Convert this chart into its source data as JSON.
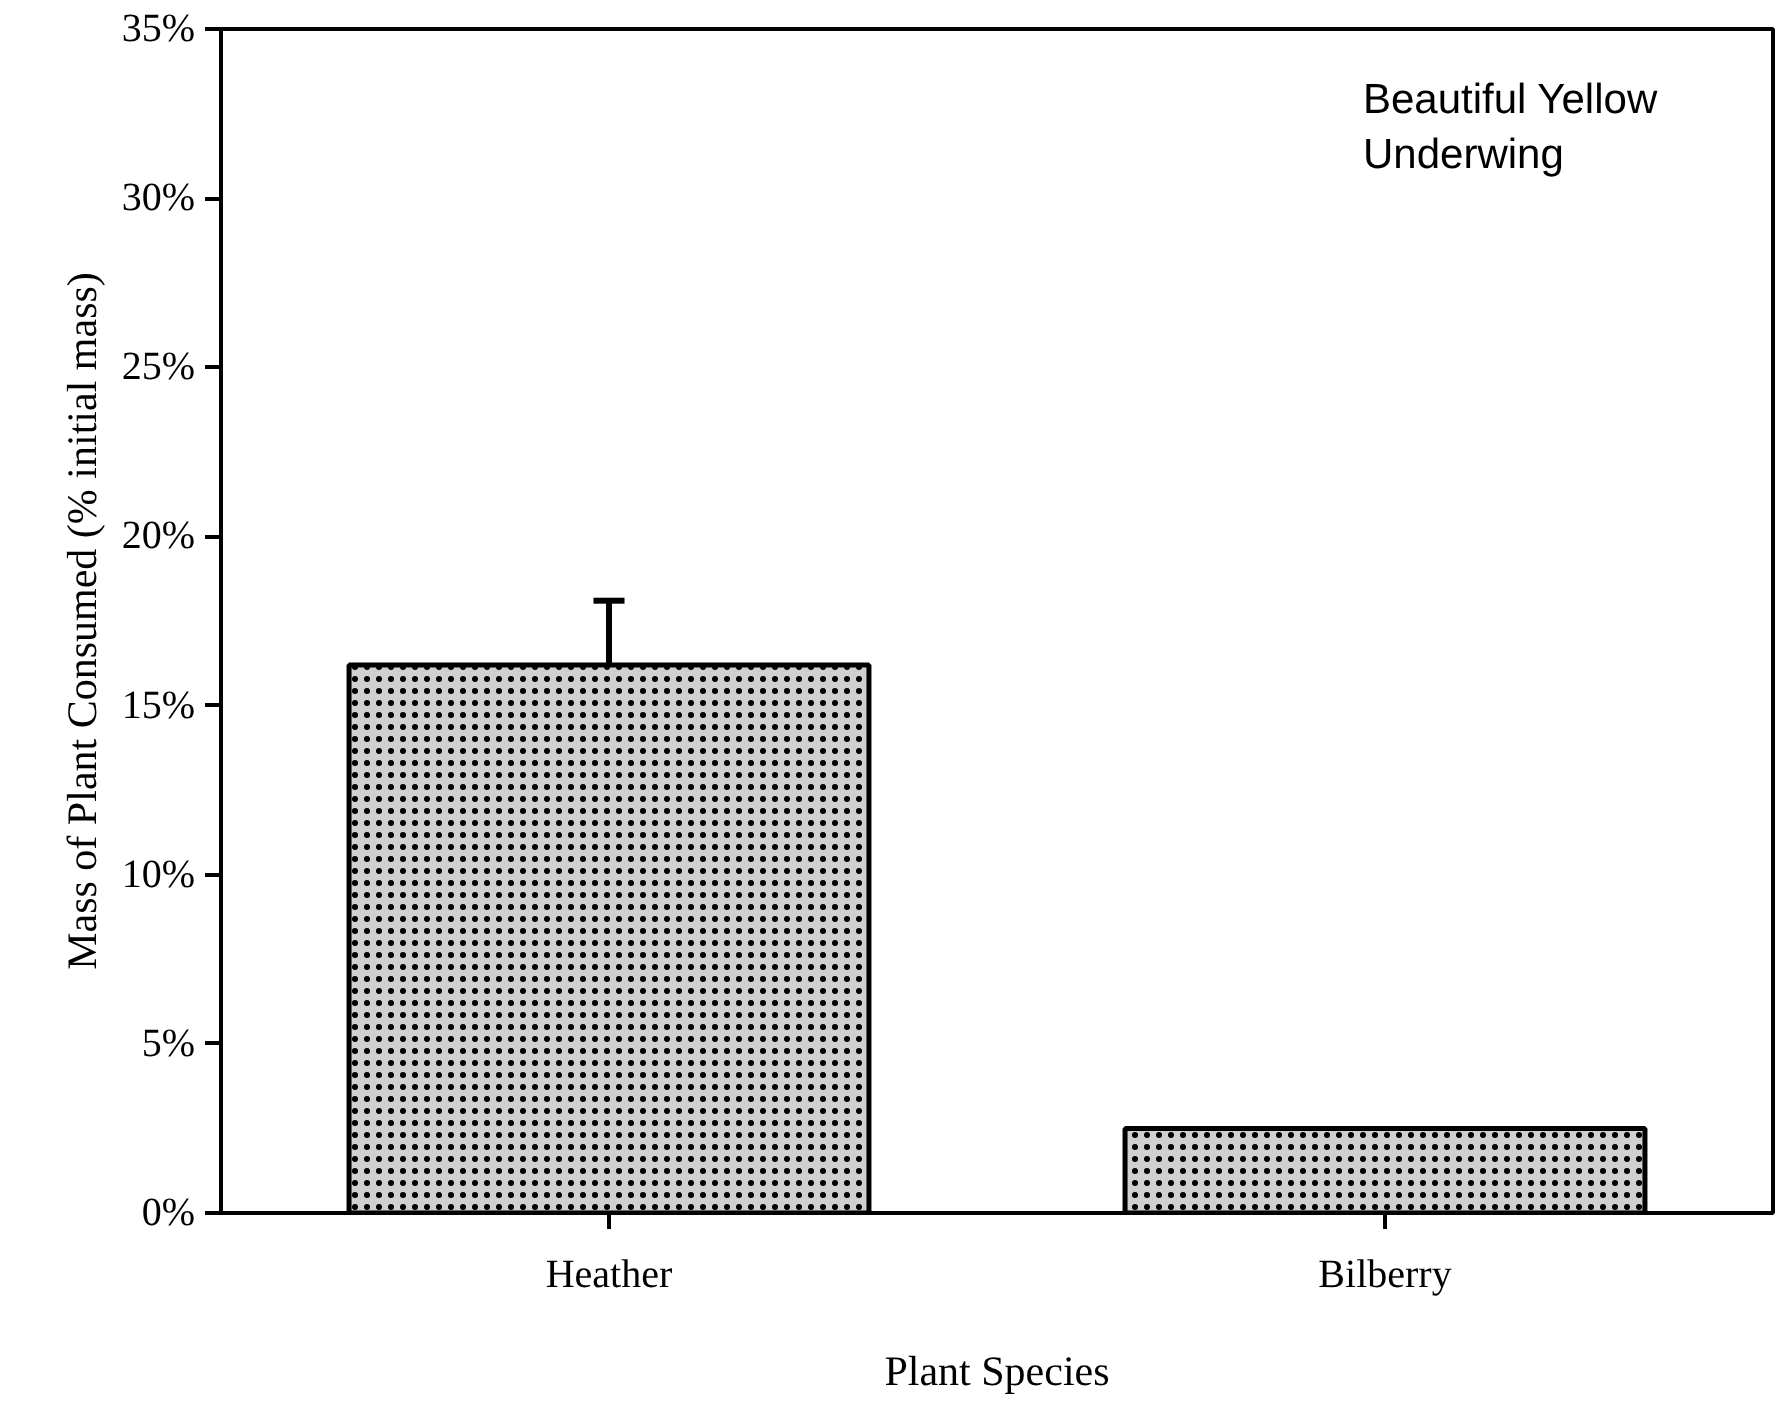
{
  "chart_data": {
    "type": "bar",
    "xlabel": "Plant Species",
    "ylabel": "Mass of Plant Consumed (% initial mass)",
    "categories": [
      "Heather",
      "Bilberry"
    ],
    "values": [
      16.2,
      2.5
    ],
    "errors": [
      [
        16.2,
        18.1
      ],
      null
    ],
    "color": "#d0d0d0",
    "ylim": [
      0,
      35
    ],
    "yticks": [
      {
        "value": 0,
        "label": "0%"
      },
      {
        "value": 5,
        "label": "5%"
      },
      {
        "value": 10,
        "label": "10%"
      },
      {
        "value": 15,
        "label": "15%"
      },
      {
        "value": 20,
        "label": "20%"
      },
      {
        "value": 25,
        "label": "25%"
      },
      {
        "value": 30,
        "label": "30%"
      },
      {
        "value": 35,
        "label": "35%"
      }
    ],
    "annotations": [
      "Beautiful Yellow\nUnderwing"
    ],
    "grid": false
  }
}
